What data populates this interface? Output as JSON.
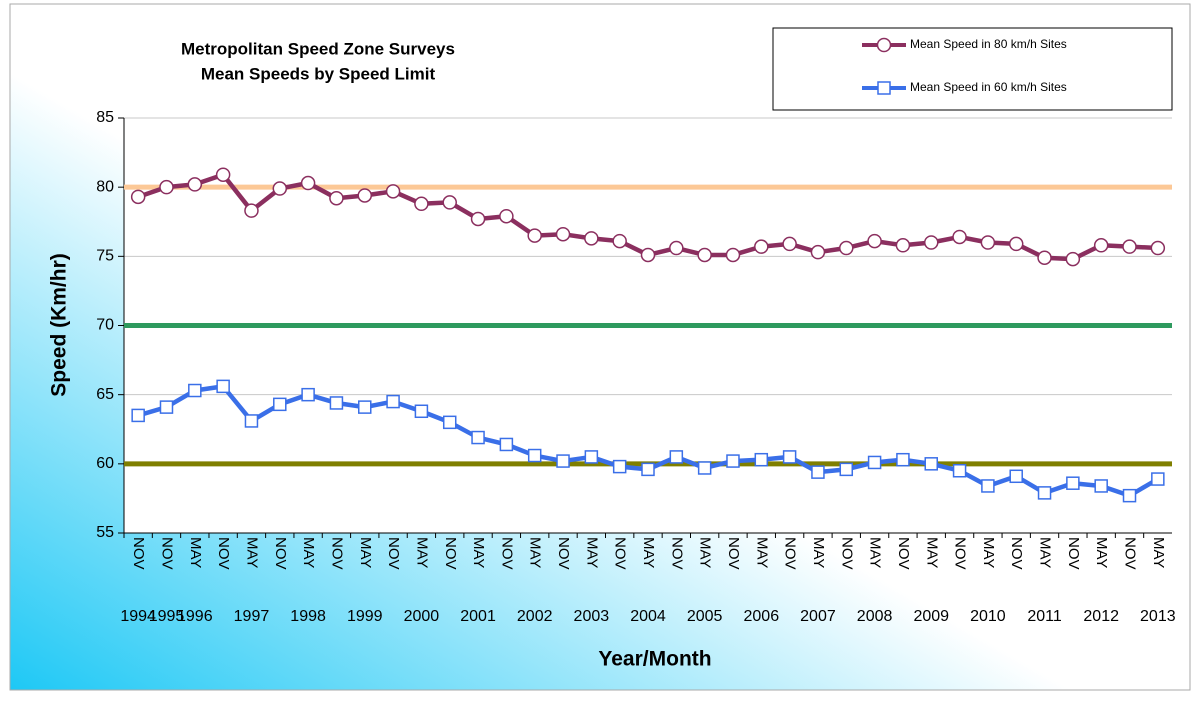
{
  "chart_data": {
    "type": "line",
    "title": "Metropolitan Speed Zone Surveys",
    "subtitle": "Mean Speeds by Speed Limit",
    "x_label": "Year/Month",
    "y_label": "Speed (Km/hr)",
    "categories": [
      "NOV",
      "NOV",
      "MAY",
      "NOV",
      "MAY",
      "NOV",
      "MAY",
      "NOV",
      "MAY",
      "NOV",
      "MAY",
      "NOV",
      "MAY",
      "NOV",
      "MAY",
      "NOV",
      "MAY",
      "NOV",
      "MAY",
      "NOV",
      "MAY",
      "NOV",
      "MAY",
      "NOV",
      "MAY",
      "NOV",
      "MAY",
      "NOV",
      "MAY",
      "NOV",
      "MAY",
      "NOV",
      "MAY",
      "NOV",
      "MAY",
      "NOV",
      "MAY"
    ],
    "years": [
      1994,
      1995,
      1996,
      null,
      1997,
      null,
      1998,
      null,
      1999,
      null,
      2000,
      null,
      2001,
      null,
      2002,
      null,
      2003,
      null,
      2004,
      null,
      2005,
      null,
      2006,
      null,
      2007,
      null,
      2008,
      null,
      2009,
      null,
      2010,
      null,
      2011,
      null,
      2012,
      null,
      2013
    ],
    "series": [
      {
        "name": "Mean Speed in 80 km/h Sites",
        "color": "#8B2F5F",
        "marker": "circle",
        "values": [
          79.3,
          80.0,
          80.2,
          80.9,
          78.3,
          79.9,
          80.3,
          79.2,
          79.4,
          79.7,
          78.8,
          78.9,
          77.7,
          77.9,
          76.5,
          76.6,
          76.3,
          76.1,
          75.1,
          75.6,
          75.1,
          75.1,
          75.7,
          75.9,
          75.3,
          75.6,
          76.1,
          75.8,
          76.0,
          76.4,
          76.0,
          75.9,
          74.9,
          74.8,
          75.8,
          75.7,
          75.6
        ]
      },
      {
        "name": "Mean Speed in 60 km/h Sites",
        "color": "#3A6FE8",
        "marker": "square",
        "values": [
          63.5,
          64.1,
          65.3,
          65.6,
          63.1,
          64.3,
          65.0,
          64.4,
          64.1,
          64.5,
          63.8,
          63.0,
          61.9,
          61.4,
          60.6,
          60.2,
          60.5,
          59.8,
          59.6,
          60.5,
          59.7,
          60.2,
          60.3,
          60.5,
          59.4,
          59.6,
          60.1,
          60.3,
          60.0,
          59.5,
          58.4,
          59.1,
          57.9,
          58.6,
          58.4,
          57.7,
          58.9
        ]
      }
    ],
    "reference_lines": [
      {
        "value": 80,
        "color": "#FCC896"
      },
      {
        "value": 70,
        "color": "#2E9A5E"
      },
      {
        "value": 60,
        "color": "#7F7F00"
      }
    ],
    "ylim": [
      55,
      85
    ],
    "yticks": [
      55,
      60,
      65,
      70,
      75,
      80,
      85
    ],
    "grid": true,
    "legend": "top-right"
  }
}
